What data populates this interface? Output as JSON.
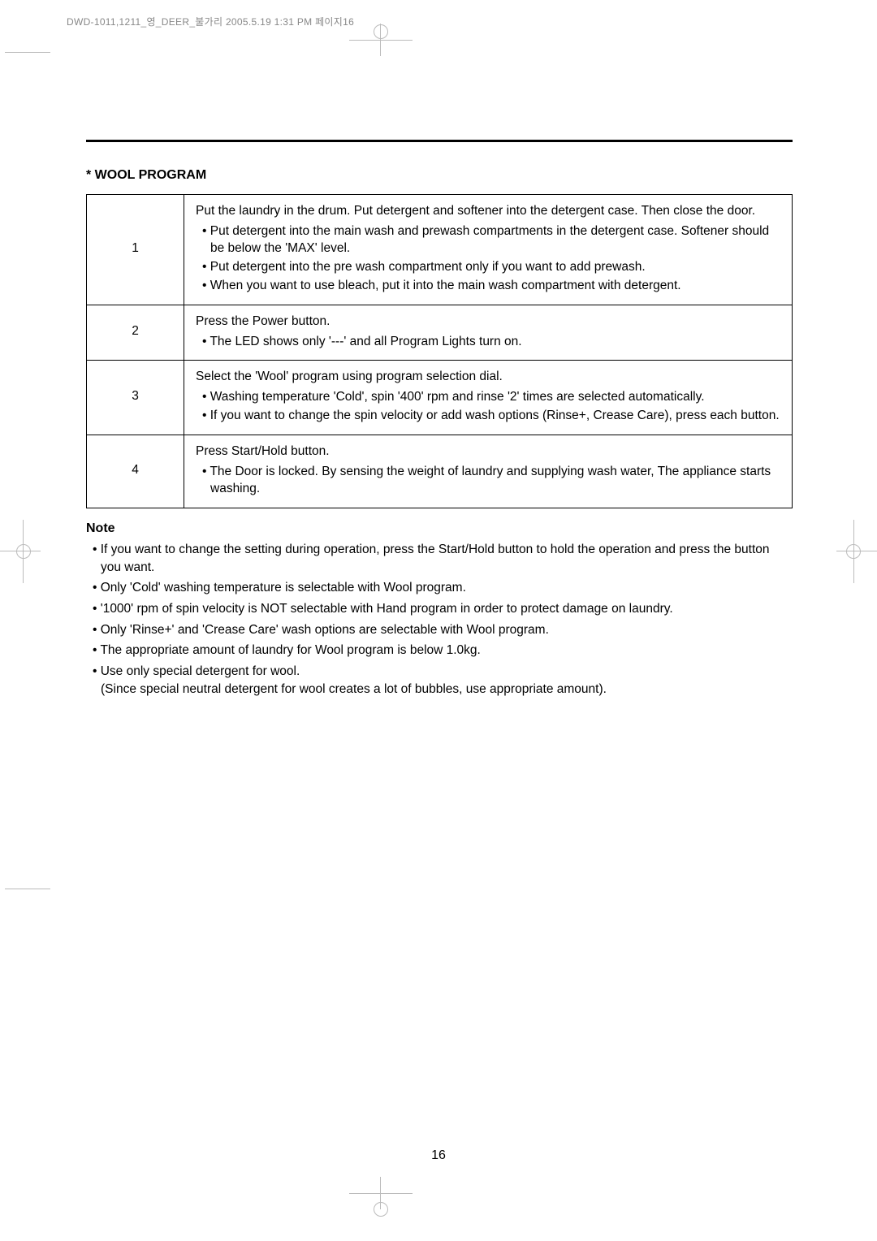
{
  "header_text": "DWD-1011,1211_영_DEER_불가리  2005.5.19 1:31 PM  페이지16",
  "section_title": "* WOOL PROGRAM",
  "note_heading": "Note",
  "page_number": "16",
  "steps": [
    {
      "num": "1",
      "main": "Put the laundry in the drum. Put detergent and softener into the detergent case. Then close the door.",
      "bullets": [
        "Put detergent into the main wash and prewash compartments in the detergent case. Softener should be below the 'MAX' level.",
        "Put detergent into the pre wash compartment only if you want to add prewash.",
        "When you want to use bleach, put it into the main wash compartment with detergent."
      ]
    },
    {
      "num": "2",
      "main": "Press the Power button.",
      "bullets": [
        "The LED shows only '---' and all Program Lights turn on."
      ]
    },
    {
      "num": "3",
      "main": "Select the 'Wool' program using program selection dial.",
      "bullets": [
        "Washing temperature 'Cold', spin '400' rpm and rinse '2' times are selected automatically.",
        "If you want to change the spin velocity or add wash options (Rinse+, Crease Care), press each button."
      ]
    },
    {
      "num": "4",
      "main": "Press Start/Hold button.",
      "bullets": [
        "The Door is locked. By sensing the weight of laundry and supplying wash water, The appliance starts washing."
      ]
    }
  ],
  "notes": [
    "If you want to change the setting during operation, press the Start/Hold button to hold the operation and press the button you want.",
    "Only 'Cold' washing temperature is selectable with Wool program.",
    "'1000' rpm of spin velocity is NOT selectable with Hand program in order to protect damage on laundry.",
    "Only 'Rinse+' and 'Crease Care' wash options are selectable with Wool program.",
    "The appropriate amount of laundry for Wool program is below 1.0kg.",
    "Use only special detergent for wool."
  ],
  "note_cont": "(Since special neutral detergent for wool creates a lot of bubbles, use appropriate amount)."
}
